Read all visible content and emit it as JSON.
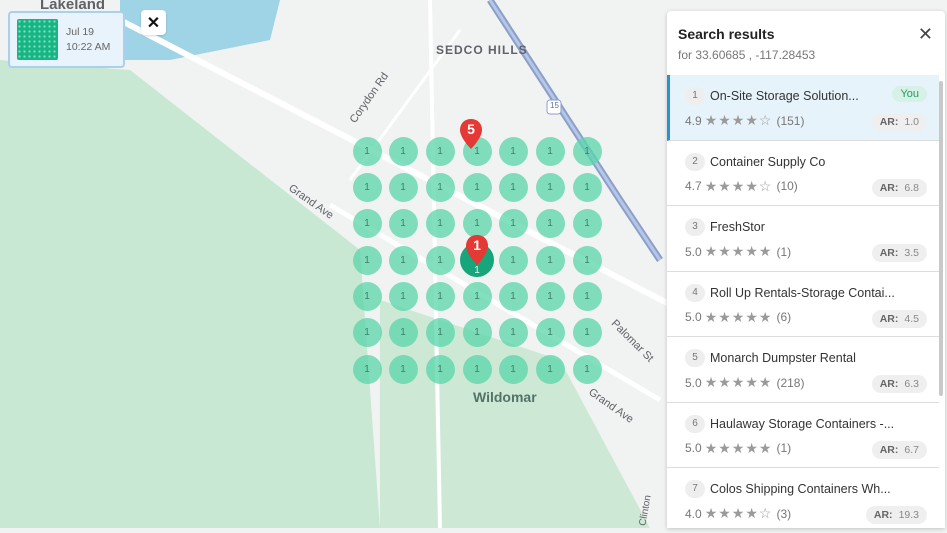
{
  "map": {
    "labels": {
      "lakeland": "Lakeland",
      "sedco": "SEDCO HILLS",
      "corydon": "Corydon Rd",
      "grand1": "Grand Ave",
      "grand2": "Grand Ave",
      "wildomar": "Wildomar",
      "palomar": "Palomar St",
      "clinton": "Clinton",
      "hwy": "15"
    },
    "grid": {
      "rows": 7,
      "cols": 7,
      "values": [
        [
          1,
          1,
          1,
          1,
          1,
          1,
          1
        ],
        [
          1,
          1,
          1,
          1,
          1,
          1,
          1
        ],
        [
          1,
          1,
          1,
          1,
          1,
          1,
          1
        ],
        [
          1,
          1,
          1,
          1,
          1,
          1,
          1
        ],
        [
          1,
          1,
          1,
          1,
          1,
          1,
          1
        ],
        [
          1,
          1,
          1,
          1,
          1,
          1,
          1
        ],
        [
          1,
          1,
          1,
          1,
          1,
          1,
          1
        ]
      ],
      "color": "#58d6aa"
    },
    "pins": [
      {
        "label": "5"
      },
      {
        "label": "1"
      }
    ],
    "pin_color": "#e53935"
  },
  "scan": {
    "date": "Jul 19",
    "time": "10:22 AM",
    "close": "✕"
  },
  "panel": {
    "title": "Search results",
    "subtitle": "for 33.60685 , -117.28453",
    "close": "✕",
    "you_label": "You",
    "ar_label": "AR:",
    "results": [
      {
        "rank": "1",
        "name": "On-Site Storage Solution...",
        "rating": "4.9",
        "stars": "★★★★☆",
        "count": "(151)",
        "ar": "1.0",
        "you": true
      },
      {
        "rank": "2",
        "name": "Container Supply Co",
        "rating": "4.7",
        "stars": "★★★★☆",
        "count": "(10)",
        "ar": "6.8"
      },
      {
        "rank": "3",
        "name": "FreshStor",
        "rating": "5.0",
        "stars": "★★★★★",
        "count": "(1)",
        "ar": "3.5"
      },
      {
        "rank": "4",
        "name": "Roll Up Rentals-Storage Contai...",
        "rating": "5.0",
        "stars": "★★★★★",
        "count": "(6)",
        "ar": "4.5"
      },
      {
        "rank": "5",
        "name": "Monarch Dumpster Rental",
        "rating": "5.0",
        "stars": "★★★★★",
        "count": "(218)",
        "ar": "6.3"
      },
      {
        "rank": "6",
        "name": "Haulaway Storage Containers -...",
        "rating": "5.0",
        "stars": "★★★★★",
        "count": "(1)",
        "ar": "6.7"
      },
      {
        "rank": "7",
        "name": "Colos Shipping Containers Wh...",
        "rating": "4.0",
        "stars": "★★★★☆",
        "count": "(3)",
        "ar": "19.3"
      }
    ]
  }
}
